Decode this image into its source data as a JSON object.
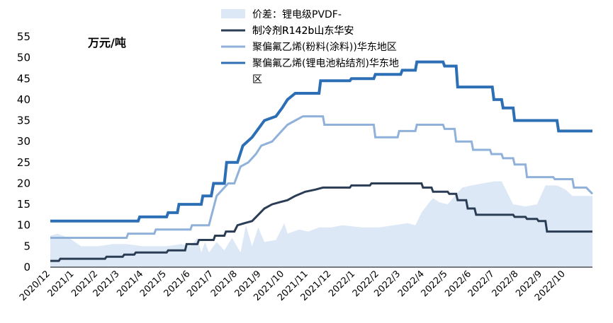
{
  "chart_data": {
    "type": "line",
    "unit_label": "万元/吨",
    "ylim": [
      0,
      55
    ],
    "yticks": [
      0,
      5,
      10,
      15,
      20,
      25,
      30,
      35,
      40,
      45,
      50,
      55
    ],
    "xticks": [
      "2020/12",
      "2021/1",
      "2021/2",
      "2021/3",
      "2021/4",
      "2021/5",
      "2021/6",
      "2021/7",
      "2021/8",
      "2021/9",
      "2021/10",
      "2021/11",
      "2021/12",
      "2022/1",
      "2022/2",
      "2022/3",
      "2022/4",
      "2022/5",
      "2022/6",
      "2022/7",
      "2022/8",
      "2022/9",
      "2022/10"
    ],
    "xlim": [
      "2020-12-01",
      "2022-11-05"
    ],
    "grid": false,
    "legend_position": "top",
    "series": [
      {
        "name": "价差：锂电级PVDF-制冷剂R142b山东华安",
        "kind": "area",
        "color": "#dce8f5",
        "points": [
          [
            "2020-12-01",
            7.5
          ],
          [
            "2020-12-10",
            8.0
          ],
          [
            "2020-12-25",
            7.0
          ],
          [
            "2021-01-10",
            5.0
          ],
          [
            "2021-02-01",
            5.0
          ],
          [
            "2021-02-20",
            5.5
          ],
          [
            "2021-03-10",
            5.5
          ],
          [
            "2021-04-01",
            5.0
          ],
          [
            "2021-05-01",
            5.0
          ],
          [
            "2021-05-20",
            5.5
          ],
          [
            "2021-06-01",
            5.0
          ],
          [
            "2021-06-10",
            7.0
          ],
          [
            "2021-06-15",
            3.5
          ],
          [
            "2021-06-20",
            6.0
          ],
          [
            "2021-06-25",
            3.5
          ],
          [
            "2021-07-05",
            6.0
          ],
          [
            "2021-07-15",
            4.0
          ],
          [
            "2021-07-25",
            7.0
          ],
          [
            "2021-08-05",
            3.5
          ],
          [
            "2021-08-12",
            10.0
          ],
          [
            "2021-08-20",
            5.0
          ],
          [
            "2021-08-28",
            9.5
          ],
          [
            "2021-09-05",
            6.0
          ],
          [
            "2021-09-20",
            6.5
          ],
          [
            "2021-10-01",
            10.5
          ],
          [
            "2021-10-05",
            8.0
          ],
          [
            "2021-10-20",
            9.0
          ],
          [
            "2021-11-01",
            8.5
          ],
          [
            "2021-11-15",
            9.5
          ],
          [
            "2021-12-01",
            9.5
          ],
          [
            "2021-12-15",
            10.0
          ],
          [
            "2022-01-10",
            9.5
          ],
          [
            "2022-02-01",
            9.5
          ],
          [
            "2022-02-20",
            10.0
          ],
          [
            "2022-03-10",
            10.5
          ],
          [
            "2022-03-20",
            10.0
          ],
          [
            "2022-03-28",
            13.0
          ],
          [
            "2022-04-05",
            15.0
          ],
          [
            "2022-04-12",
            16.5
          ],
          [
            "2022-04-20",
            15.5
          ],
          [
            "2022-05-01",
            15.0
          ],
          [
            "2022-05-10",
            17.0
          ],
          [
            "2022-05-20",
            19.0
          ],
          [
            "2022-06-01",
            19.5
          ],
          [
            "2022-06-15",
            20.0
          ],
          [
            "2022-07-01",
            20.5
          ],
          [
            "2022-07-10",
            20.5
          ],
          [
            "2022-07-25",
            15.0
          ],
          [
            "2022-08-10",
            14.5
          ],
          [
            "2022-08-25",
            15.0
          ],
          [
            "2022-09-05",
            19.5
          ],
          [
            "2022-09-20",
            19.5
          ],
          [
            "2022-10-01",
            18.5
          ],
          [
            "2022-10-10",
            17.0
          ],
          [
            "2022-10-25",
            17.0
          ],
          [
            "2022-11-05",
            17.0
          ]
        ]
      },
      {
        "name": "聚偏氟乙烯(粉料(涂料))华东地区",
        "kind": "line",
        "color": "#8fb1da",
        "points": [
          [
            "2020-12-01",
            7.0
          ],
          [
            "2021-03-10",
            7.0
          ],
          [
            "2021-03-12",
            8.0
          ],
          [
            "2021-04-15",
            8.0
          ],
          [
            "2021-04-17",
            9.0
          ],
          [
            "2021-06-01",
            9.0
          ],
          [
            "2021-06-03",
            10.0
          ],
          [
            "2021-06-25",
            10.0
          ],
          [
            "2021-07-05",
            17.0
          ],
          [
            "2021-07-20",
            20.0
          ],
          [
            "2021-07-28",
            20.0
          ],
          [
            "2021-08-05",
            24.0
          ],
          [
            "2021-08-15",
            25.0
          ],
          [
            "2021-08-25",
            27.0
          ],
          [
            "2021-09-01",
            29.0
          ],
          [
            "2021-09-15",
            30.0
          ],
          [
            "2021-09-25",
            32.0
          ],
          [
            "2021-10-05",
            34.0
          ],
          [
            "2021-10-15",
            35.0
          ],
          [
            "2021-10-25",
            36.0
          ],
          [
            "2021-11-20",
            36.0
          ],
          [
            "2021-11-22",
            34.0
          ],
          [
            "2022-01-25",
            34.0
          ],
          [
            "2022-01-27",
            31.0
          ],
          [
            "2022-02-25",
            31.0
          ],
          [
            "2022-02-27",
            32.5
          ],
          [
            "2022-03-20",
            32.5
          ],
          [
            "2022-03-22",
            34.0
          ],
          [
            "2022-04-25",
            34.0
          ],
          [
            "2022-04-27",
            33.0
          ],
          [
            "2022-05-10",
            33.0
          ],
          [
            "2022-05-12",
            30.0
          ],
          [
            "2022-06-01",
            30.0
          ],
          [
            "2022-06-03",
            28.0
          ],
          [
            "2022-06-25",
            28.0
          ],
          [
            "2022-06-27",
            27.0
          ],
          [
            "2022-07-10",
            27.0
          ],
          [
            "2022-07-12",
            26.0
          ],
          [
            "2022-07-25",
            26.0
          ],
          [
            "2022-07-27",
            24.5
          ],
          [
            "2022-08-10",
            24.5
          ],
          [
            "2022-08-12",
            21.5
          ],
          [
            "2022-09-15",
            21.5
          ],
          [
            "2022-09-17",
            21.0
          ],
          [
            "2022-10-10",
            21.0
          ],
          [
            "2022-10-12",
            19.0
          ],
          [
            "2022-10-28",
            19.0
          ],
          [
            "2022-11-05",
            17.5
          ]
        ]
      },
      {
        "name": "聚偏氟乙烯(锂电池粘结剂)华东地区",
        "kind": "line",
        "color": "#2d6fb5",
        "points": [
          [
            "2020-12-01",
            11.0
          ],
          [
            "2021-03-25",
            11.0
          ],
          [
            "2021-03-27",
            12.0
          ],
          [
            "2021-05-01",
            12.0
          ],
          [
            "2021-05-03",
            13.0
          ],
          [
            "2021-05-15",
            13.0
          ],
          [
            "2021-05-17",
            15.0
          ],
          [
            "2021-06-15",
            15.0
          ],
          [
            "2021-06-17",
            17.0
          ],
          [
            "2021-06-28",
            17.0
          ],
          [
            "2021-07-01",
            20.0
          ],
          [
            "2021-07-15",
            20.0
          ],
          [
            "2021-07-18",
            25.0
          ],
          [
            "2021-08-01",
            25.0
          ],
          [
            "2021-08-08",
            29.0
          ],
          [
            "2021-08-20",
            31.0
          ],
          [
            "2021-08-28",
            33.0
          ],
          [
            "2021-09-05",
            35.0
          ],
          [
            "2021-09-20",
            36.0
          ],
          [
            "2021-09-28",
            38.0
          ],
          [
            "2021-10-05",
            40.0
          ],
          [
            "2021-10-15",
            41.5
          ],
          [
            "2021-11-15",
            41.5
          ],
          [
            "2021-11-17",
            44.5
          ],
          [
            "2021-12-25",
            44.5
          ],
          [
            "2021-12-27",
            45.0
          ],
          [
            "2022-01-25",
            45.0
          ],
          [
            "2022-01-27",
            46.0
          ],
          [
            "2022-03-01",
            46.0
          ],
          [
            "2022-03-03",
            47.0
          ],
          [
            "2022-03-20",
            47.0
          ],
          [
            "2022-03-22",
            49.0
          ],
          [
            "2022-04-25",
            49.0
          ],
          [
            "2022-04-27",
            48.0
          ],
          [
            "2022-05-12",
            48.0
          ],
          [
            "2022-05-14",
            43.0
          ],
          [
            "2022-06-28",
            43.0
          ],
          [
            "2022-06-30",
            40.0
          ],
          [
            "2022-07-10",
            40.0
          ],
          [
            "2022-07-12",
            38.0
          ],
          [
            "2022-07-25",
            38.0
          ],
          [
            "2022-07-27",
            35.0
          ],
          [
            "2022-09-20",
            35.0
          ],
          [
            "2022-09-22",
            32.5
          ],
          [
            "2022-11-05",
            32.5
          ]
        ]
      },
      {
        "name": "制冷剂R142b山东华安",
        "kind": "line",
        "color": "#2b3d55",
        "points": [
          [
            "2020-12-01",
            1.5
          ],
          [
            "2020-12-12",
            1.5
          ],
          [
            "2020-12-14",
            2.0
          ],
          [
            "2021-02-10",
            2.0
          ],
          [
            "2021-02-12",
            2.5
          ],
          [
            "2021-03-05",
            2.5
          ],
          [
            "2021-03-07",
            3.0
          ],
          [
            "2021-03-20",
            3.0
          ],
          [
            "2021-03-22",
            3.5
          ],
          [
            "2021-05-01",
            3.5
          ],
          [
            "2021-05-03",
            4.0
          ],
          [
            "2021-05-25",
            4.0
          ],
          [
            "2021-05-27",
            5.5
          ],
          [
            "2021-06-10",
            5.5
          ],
          [
            "2021-06-12",
            6.5
          ],
          [
            "2021-07-01",
            6.5
          ],
          [
            "2021-07-03",
            7.5
          ],
          [
            "2021-07-15",
            7.5
          ],
          [
            "2021-07-17",
            8.5
          ],
          [
            "2021-07-28",
            8.5
          ],
          [
            "2021-08-01",
            10.0
          ],
          [
            "2021-08-10",
            10.5
          ],
          [
            "2021-08-20",
            11.0
          ],
          [
            "2021-08-28",
            12.5
          ],
          [
            "2021-09-05",
            14.0
          ],
          [
            "2021-09-15",
            15.0
          ],
          [
            "2021-09-25",
            15.5
          ],
          [
            "2021-10-05",
            16.0
          ],
          [
            "2021-10-15",
            17.0
          ],
          [
            "2021-10-28",
            18.0
          ],
          [
            "2021-11-10",
            18.5
          ],
          [
            "2021-11-20",
            19.0
          ],
          [
            "2021-12-25",
            19.0
          ],
          [
            "2021-12-27",
            19.5
          ],
          [
            "2022-01-20",
            19.5
          ],
          [
            "2022-01-22",
            20.0
          ],
          [
            "2022-03-28",
            20.0
          ],
          [
            "2022-03-30",
            19.0
          ],
          [
            "2022-04-10",
            19.0
          ],
          [
            "2022-04-12",
            18.0
          ],
          [
            "2022-05-01",
            18.0
          ],
          [
            "2022-05-03",
            17.5
          ],
          [
            "2022-05-12",
            17.5
          ],
          [
            "2022-05-14",
            16.0
          ],
          [
            "2022-05-25",
            16.0
          ],
          [
            "2022-05-27",
            14.0
          ],
          [
            "2022-06-05",
            14.0
          ],
          [
            "2022-06-07",
            12.5
          ],
          [
            "2022-07-25",
            12.5
          ],
          [
            "2022-07-27",
            12.0
          ],
          [
            "2022-08-10",
            12.0
          ],
          [
            "2022-08-12",
            11.5
          ],
          [
            "2022-08-25",
            11.5
          ],
          [
            "2022-08-27",
            11.0
          ],
          [
            "2022-09-05",
            11.0
          ],
          [
            "2022-09-07",
            8.5
          ],
          [
            "2022-11-05",
            8.5
          ]
        ]
      }
    ],
    "legend": [
      {
        "line1": "价差：锂电级PVDF-",
        "line2": "制冷剂R142b山东华安",
        "swatch": "area",
        "color": "#dce8f5"
      },
      {
        "line1": "制冷剂R142b山东华安",
        "swatch": "line",
        "color": "#2b3d55"
      },
      {
        "line1": "聚偏氟乙烯(粉料(涂料))华东地区",
        "swatch": "line",
        "color": "#8fb1da"
      },
      {
        "line1": "聚偏氟乙烯(锂电池粘结剂)华东地",
        "line2": "区",
        "swatch": "line",
        "color": "#2d6fb5"
      }
    ]
  }
}
